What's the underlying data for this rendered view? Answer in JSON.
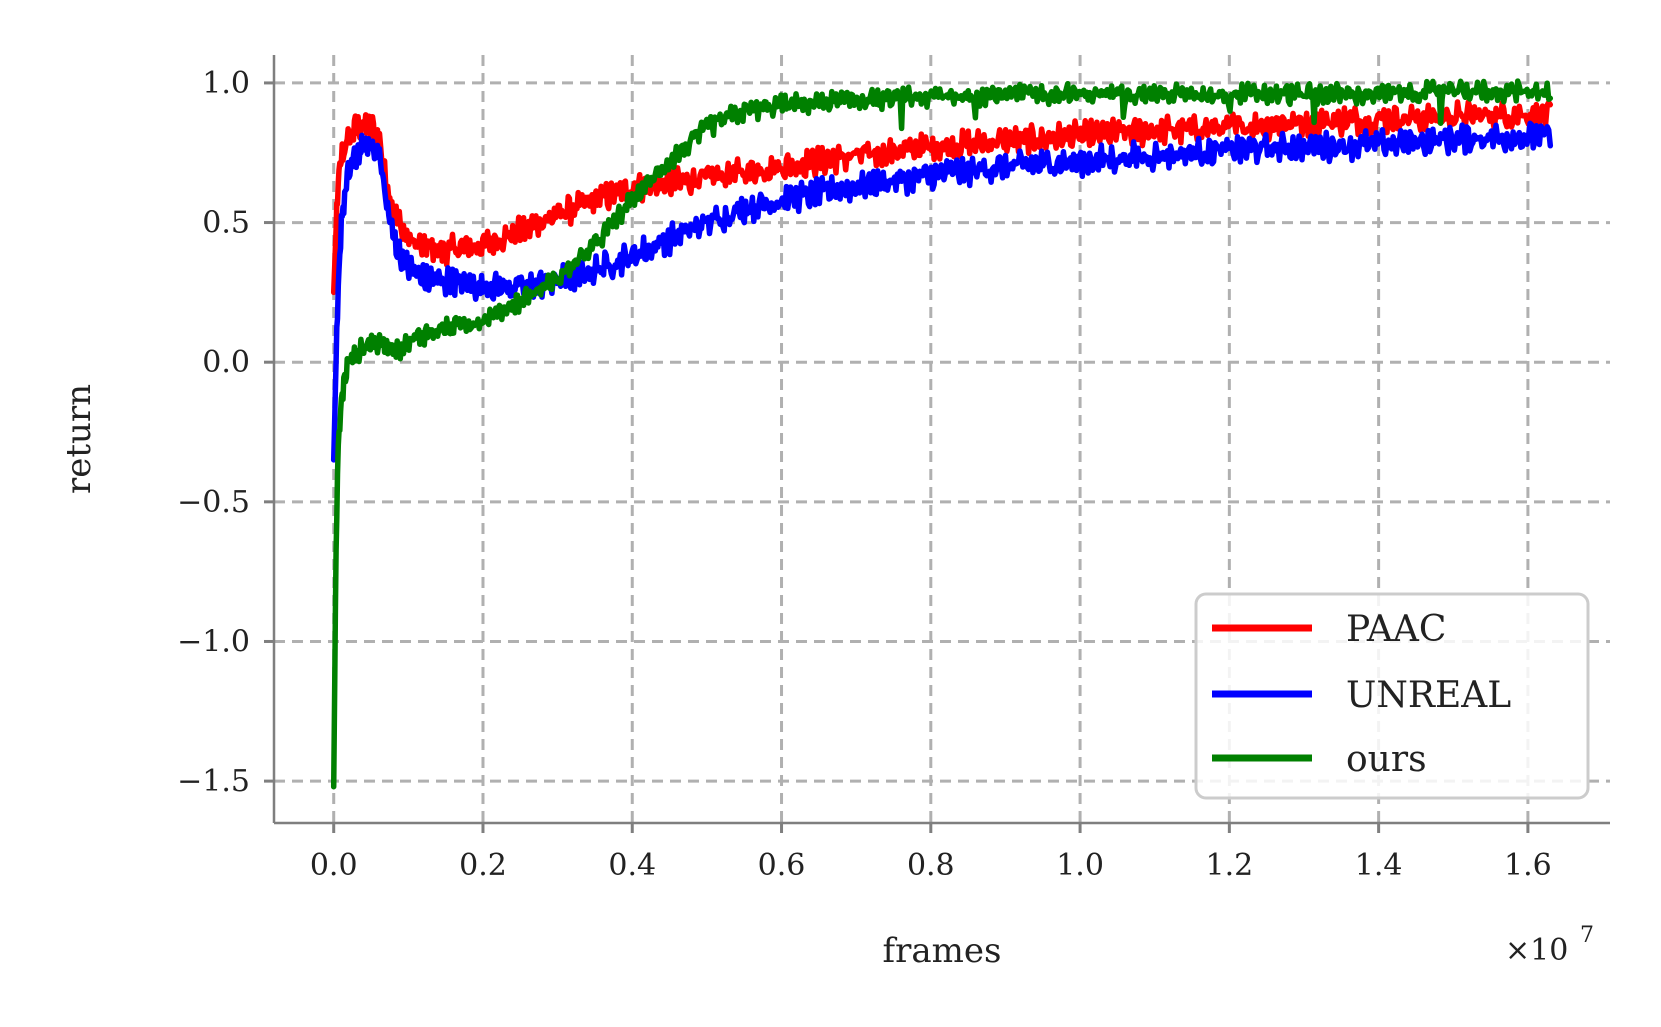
{
  "chart_data": {
    "type": "line",
    "xlabel": "frames",
    "ylabel": "return",
    "x_multiplier_label": "×10",
    "x_multiplier_exp": "7",
    "xlim": [
      -0.08,
      1.71
    ],
    "ylim": [
      -1.65,
      1.1
    ],
    "x_ticks": [
      0.0,
      0.2,
      0.4,
      0.6,
      0.8,
      1.0,
      1.2,
      1.4,
      1.6
    ],
    "x_tick_labels": [
      "0.0",
      "0.2",
      "0.4",
      "0.6",
      "0.8",
      "1.0",
      "1.2",
      "1.4",
      "1.6"
    ],
    "y_ticks": [
      1.0,
      0.5,
      0.0,
      -0.5,
      -1.0,
      -1.5
    ],
    "y_tick_labels": [
      "1.0",
      "0.5",
      "0.0",
      "−0.5",
      "−1.0",
      "−1.5"
    ],
    "grid": true,
    "legend_position": "bottom-right",
    "series": [
      {
        "name": "PAAC",
        "color": "#ff0000",
        "x": [
          0.0,
          0.005,
          0.01,
          0.02,
          0.03,
          0.04,
          0.05,
          0.06,
          0.07,
          0.08,
          0.09,
          0.1,
          0.12,
          0.15,
          0.18,
          0.2,
          0.25,
          0.3,
          0.35,
          0.4,
          0.45,
          0.5,
          0.55,
          0.6,
          0.7,
          0.8,
          0.9,
          1.0,
          1.1,
          1.2,
          1.3,
          1.4,
          1.5,
          1.63
        ],
        "y": [
          0.25,
          0.6,
          0.73,
          0.8,
          0.84,
          0.85,
          0.84,
          0.82,
          0.65,
          0.55,
          0.48,
          0.44,
          0.41,
          0.4,
          0.41,
          0.42,
          0.47,
          0.53,
          0.58,
          0.62,
          0.64,
          0.66,
          0.68,
          0.7,
          0.74,
          0.77,
          0.79,
          0.81,
          0.83,
          0.84,
          0.86,
          0.87,
          0.88,
          0.89
        ],
        "noise": 0.035
      },
      {
        "name": "UNREAL",
        "color": "#0000ff",
        "x": [
          0.0,
          0.005,
          0.01,
          0.02,
          0.03,
          0.04,
          0.05,
          0.06,
          0.07,
          0.08,
          0.09,
          0.1,
          0.12,
          0.15,
          0.2,
          0.25,
          0.3,
          0.35,
          0.4,
          0.45,
          0.5,
          0.55,
          0.6,
          0.7,
          0.8,
          0.9,
          1.0,
          1.1,
          1.2,
          1.3,
          1.4,
          1.5,
          1.63
        ],
        "y": [
          -0.35,
          0.2,
          0.5,
          0.68,
          0.74,
          0.77,
          0.78,
          0.76,
          0.58,
          0.45,
          0.38,
          0.34,
          0.3,
          0.29,
          0.27,
          0.27,
          0.29,
          0.33,
          0.38,
          0.44,
          0.5,
          0.55,
          0.58,
          0.63,
          0.67,
          0.7,
          0.72,
          0.74,
          0.76,
          0.77,
          0.78,
          0.8,
          0.81
        ],
        "noise": 0.035
      },
      {
        "name": "ours",
        "color": "#008000",
        "x": [
          0.0,
          0.003,
          0.006,
          0.01,
          0.015,
          0.02,
          0.03,
          0.05,
          0.07,
          0.09,
          0.1,
          0.12,
          0.15,
          0.2,
          0.25,
          0.3,
          0.35,
          0.4,
          0.45,
          0.5,
          0.55,
          0.6,
          0.7,
          0.8,
          0.9,
          1.0,
          1.1,
          1.2,
          1.3,
          1.4,
          1.5,
          1.63
        ],
        "y": [
          -1.52,
          -0.7,
          -0.3,
          -0.15,
          -0.05,
          0.0,
          0.03,
          0.07,
          0.06,
          0.05,
          0.07,
          0.1,
          0.12,
          0.15,
          0.22,
          0.3,
          0.42,
          0.58,
          0.72,
          0.84,
          0.9,
          0.92,
          0.94,
          0.95,
          0.96,
          0.96,
          0.96,
          0.96,
          0.96,
          0.96,
          0.97,
          0.97
        ],
        "noise": 0.025
      }
    ]
  }
}
